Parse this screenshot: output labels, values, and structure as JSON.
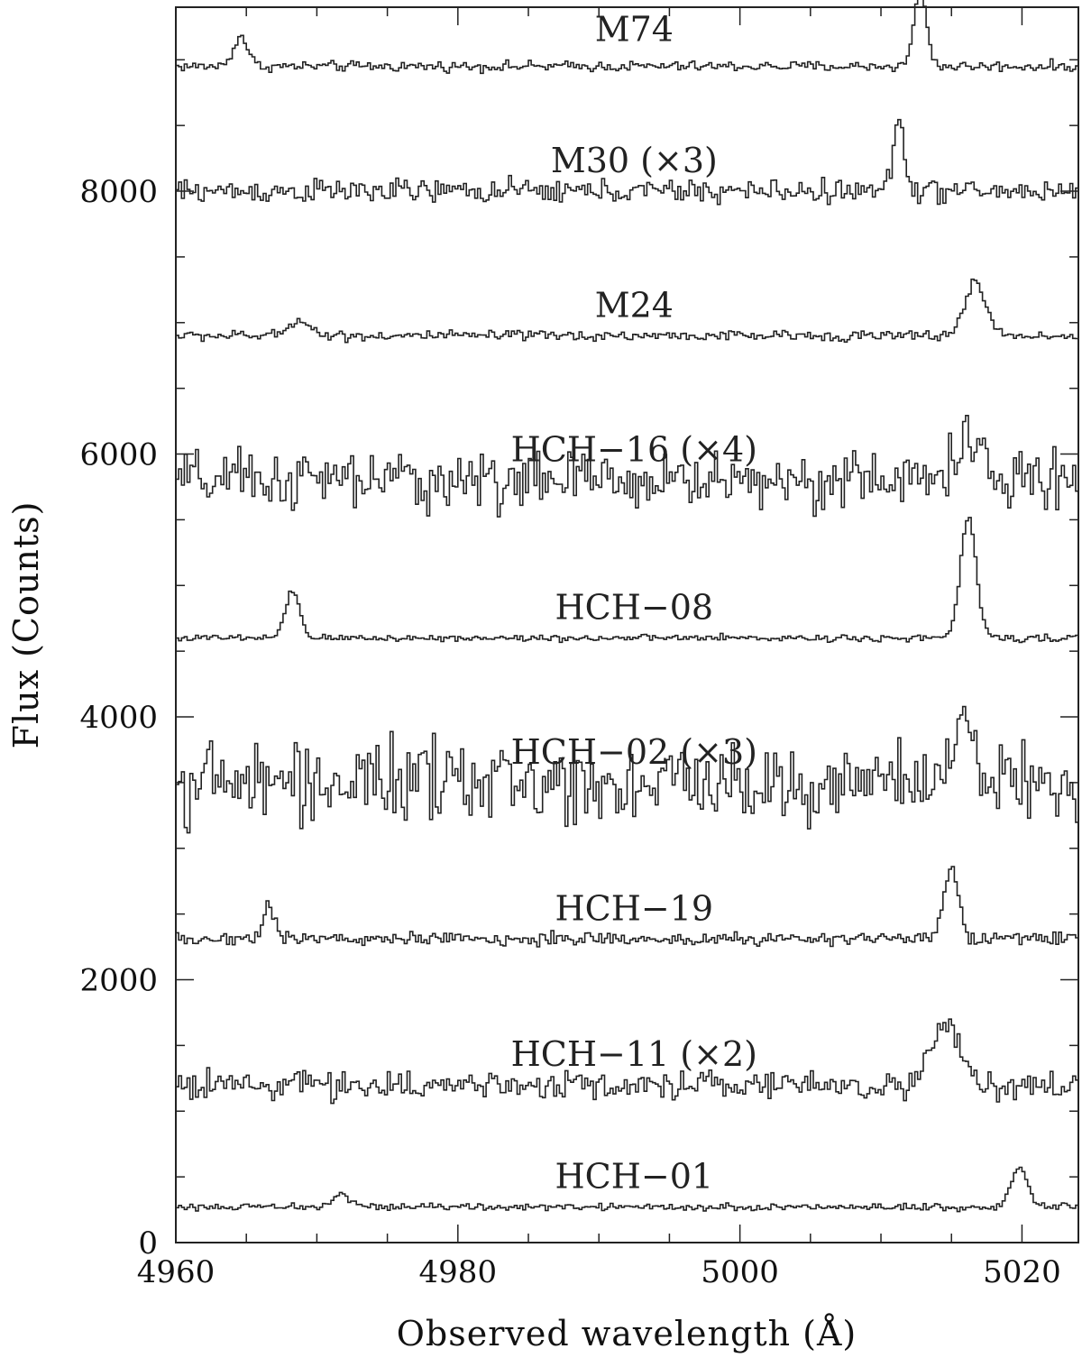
{
  "chart_data": {
    "type": "line",
    "xlabel": "Observed wavelength (Å)",
    "ylabel": "Flux (Counts)",
    "xlim": [
      4960,
      5024
    ],
    "ylim": [
      0,
      9400
    ],
    "xticks": [
      4960,
      4980,
      5000,
      5020
    ],
    "xtick_labels": [
      "4960",
      "4980",
      "5000",
      "5020"
    ],
    "yticks": [
      0,
      2000,
      4000,
      6000,
      8000
    ],
    "ytick_labels": [
      "0",
      "2000",
      "4000",
      "6000",
      "8000"
    ],
    "grid": false,
    "legend": "none",
    "series": [
      {
        "name": "M74",
        "baseline": 8950,
        "noise": 30,
        "label_x": 4992.5,
        "label_y": 9240,
        "peaks": [
          {
            "x": 4964.6,
            "height": 230,
            "width": 0.5
          },
          {
            "x": 5012.8,
            "height": 560,
            "width": 0.45
          }
        ]
      },
      {
        "name": "M30 (×3)",
        "baseline": 8000,
        "noise": 70,
        "label_x": 4992.5,
        "label_y": 8240,
        "peaks": [
          {
            "x": 5011.3,
            "height": 540,
            "width": 0.4
          }
        ]
      },
      {
        "name": "M24",
        "baseline": 6900,
        "noise": 30,
        "label_x": 4992.5,
        "label_y": 7140,
        "peaks": [
          {
            "x": 4968.8,
            "height": 130,
            "width": 0.7
          },
          {
            "x": 5016.7,
            "height": 400,
            "width": 0.75
          }
        ]
      },
      {
        "name": "HCH−16 (×4)",
        "baseline": 5800,
        "noise": 170,
        "label_x": 4992.5,
        "label_y": 6040,
        "peaks": [
          {
            "x": 5016.0,
            "height": 300,
            "width": 0.9
          }
        ]
      },
      {
        "name": "HCH−08",
        "baseline": 4600,
        "noise": 20,
        "label_x": 4992.5,
        "label_y": 4840,
        "peaks": [
          {
            "x": 4968.3,
            "height": 350,
            "width": 0.5
          },
          {
            "x": 5016.2,
            "height": 920,
            "width": 0.55
          }
        ]
      },
      {
        "name": "HCH−02 (×3)",
        "baseline": 3500,
        "noise": 230,
        "label_x": 4992.5,
        "label_y": 3740,
        "peaks": [
          {
            "x": 5015.8,
            "height": 500,
            "width": 0.6
          }
        ]
      },
      {
        "name": "HCH−19",
        "baseline": 2310,
        "noise": 40,
        "label_x": 4992.5,
        "label_y": 2550,
        "peaks": [
          {
            "x": 4966.6,
            "height": 260,
            "width": 0.45
          },
          {
            "x": 5015.0,
            "height": 500,
            "width": 0.55
          }
        ]
      },
      {
        "name": "HCH−11 (×2)",
        "baseline": 1200,
        "noise": 80,
        "label_x": 4992.5,
        "label_y": 1440,
        "peaks": [
          {
            "x": 5014.6,
            "height": 450,
            "width": 1.0
          }
        ]
      },
      {
        "name": "HCH−01",
        "baseline": 270,
        "noise": 20,
        "label_x": 4992.5,
        "label_y": 510,
        "peaks": [
          {
            "x": 4971.8,
            "height": 100,
            "width": 0.6
          },
          {
            "x": 5019.8,
            "height": 290,
            "width": 0.6
          }
        ]
      }
    ]
  }
}
